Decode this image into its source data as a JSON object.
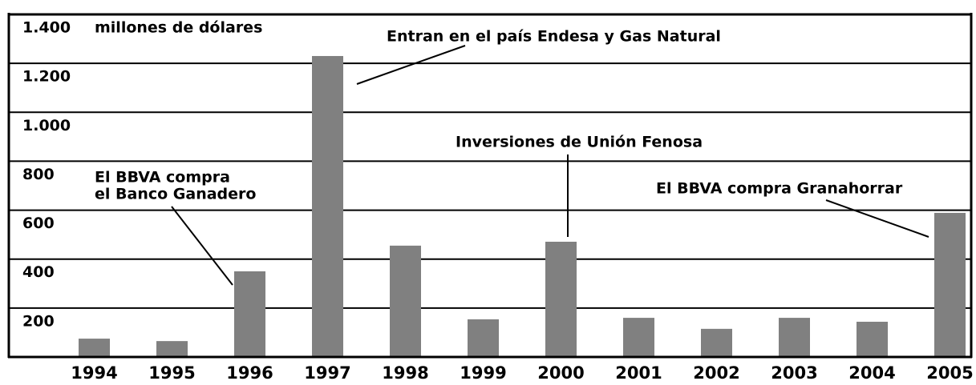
{
  "chart_data": {
    "type": "bar",
    "y_label": "millones de dólares",
    "categories": [
      "1994",
      "1995",
      "1996",
      "1997",
      "1998",
      "1999",
      "2000",
      "2001",
      "2002",
      "2003",
      "2004",
      "2005"
    ],
    "values": [
      75,
      65,
      350,
      1230,
      455,
      154,
      471,
      160,
      115,
      160,
      144,
      589
    ],
    "color": "#808080",
    "ylim": [
      0,
      1400
    ],
    "yticks": [
      200,
      400,
      600,
      800,
      {
        "value": 1000,
        "label": "1.000"
      },
      {
        "value": 1200,
        "label": "1.200"
      },
      {
        "value": 1400,
        "label": "1.400"
      }
    ],
    "grid": true,
    "annotations": [
      {
        "lines": [
          "Entran en el país Endesa y Gas Natural"
        ]
      },
      {
        "lines": [
          "Inversiones de Unión Fenosa"
        ]
      },
      {
        "lines": [
          "El BBVA compra",
          "el Banco Ganadero"
        ]
      },
      {
        "lines": [
          "El BBVA compra Granahorrar"
        ]
      }
    ]
  }
}
